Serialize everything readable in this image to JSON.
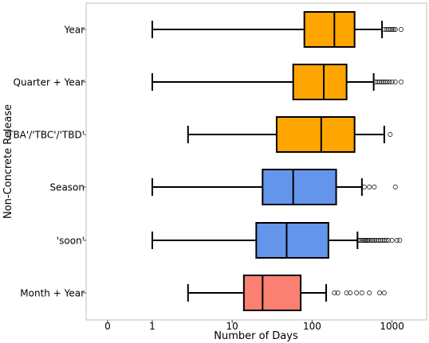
{
  "chart_data": {
    "type": "boxplot",
    "orientation": "horizontal",
    "xlabel": "Number of Days",
    "ylabel": "Non-Concrete Release",
    "x_scale": "symlog",
    "x_ticks": [
      {
        "value": 0,
        "label": "0"
      },
      {
        "value": 1,
        "label": "1"
      },
      {
        "value": 10,
        "label": "10"
      },
      {
        "value": 100,
        "label": "100"
      },
      {
        "value": 1000,
        "label": "1000"
      }
    ],
    "grid": false,
    "legend": "none",
    "boxes": [
      {
        "label": "Year",
        "color": "#FFA500",
        "whisker_low": 1,
        "q1": 80,
        "median": 190,
        "q3": 340,
        "whisker_high": 750,
        "outliers": [
          800,
          850,
          900,
          950,
          1000,
          1050,
          1100,
          1300
        ]
      },
      {
        "label": "Quarter + Year",
        "color": "#FFA500",
        "whisker_low": 1,
        "q1": 58,
        "median": 140,
        "q3": 270,
        "whisker_high": 590,
        "outliers": [
          620,
          660,
          700,
          740,
          780,
          820,
          870,
          930,
          1000,
          1100,
          1300
        ]
      },
      {
        "label": "'TBA'/'TBC'/'TBD'",
        "color": "#FFA500",
        "whisker_low": 2.8,
        "q1": 36,
        "median": 130,
        "q3": 340,
        "whisker_high": 800,
        "outliers": [
          950
        ]
      },
      {
        "label": "Season",
        "color": "#6495ED",
        "whisker_low": 1,
        "q1": 24,
        "median": 58,
        "q3": 200,
        "whisker_high": 420,
        "outliers": [
          450,
          520,
          600,
          1100
        ]
      },
      {
        "label": "'soon'",
        "color": "#6495ED",
        "whisker_low": 1,
        "q1": 20,
        "median": 48,
        "q3": 160,
        "whisker_high": 370,
        "outliers": [
          380,
          400,
          420,
          440,
          460,
          480,
          500,
          520,
          550,
          580,
          610,
          640,
          680,
          720,
          760,
          800,
          850,
          900,
          1000,
          1150,
          1250
        ]
      },
      {
        "label": "Month + Year",
        "color": "#FA8072",
        "whisker_low": 2.8,
        "q1": 14,
        "median": 24,
        "q3": 72,
        "whisker_high": 150,
        "outliers": [
          190,
          210,
          270,
          300,
          360,
          420,
          520,
          700,
          800
        ]
      }
    ]
  }
}
